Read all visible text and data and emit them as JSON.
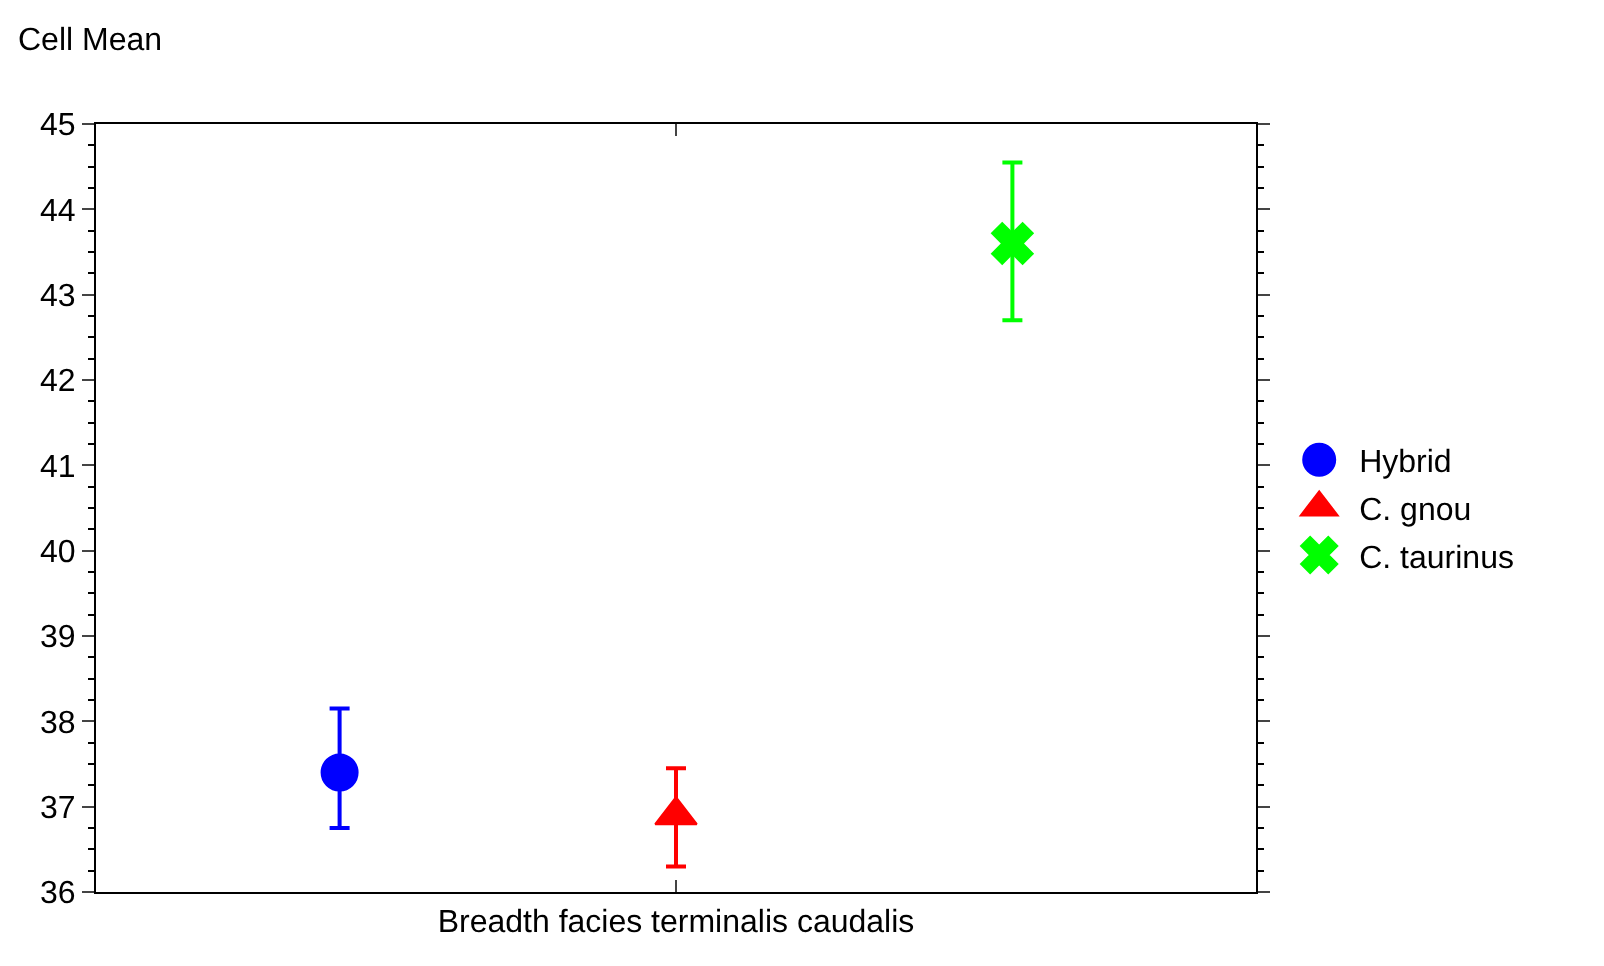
{
  "chart_data": {
    "type": "scatter",
    "ylabel": "Cell Mean",
    "categories": [
      "Breadth facies terminalis caudalis"
    ],
    "series": [
      {
        "name": "Hybrid",
        "color": "#0000ff",
        "marker": "circle",
        "values": [
          37.4
        ],
        "errors": [
          [
            36.75,
            38.15
          ]
        ]
      },
      {
        "name": "C. gnou",
        "color": "#ff0000",
        "marker": "triangle",
        "values": [
          36.9
        ],
        "errors": [
          [
            36.3,
            37.45
          ]
        ]
      },
      {
        "name": "C. taurinus",
        "color": "#00ff00",
        "marker": "cross",
        "values": [
          43.6
        ],
        "errors": [
          [
            42.7,
            44.55
          ]
        ]
      }
    ],
    "ylim": [
      36,
      45
    ],
    "yticks": [
      36,
      37,
      38,
      39,
      40,
      41,
      42,
      43,
      44,
      45
    ],
    "legend": "right"
  }
}
